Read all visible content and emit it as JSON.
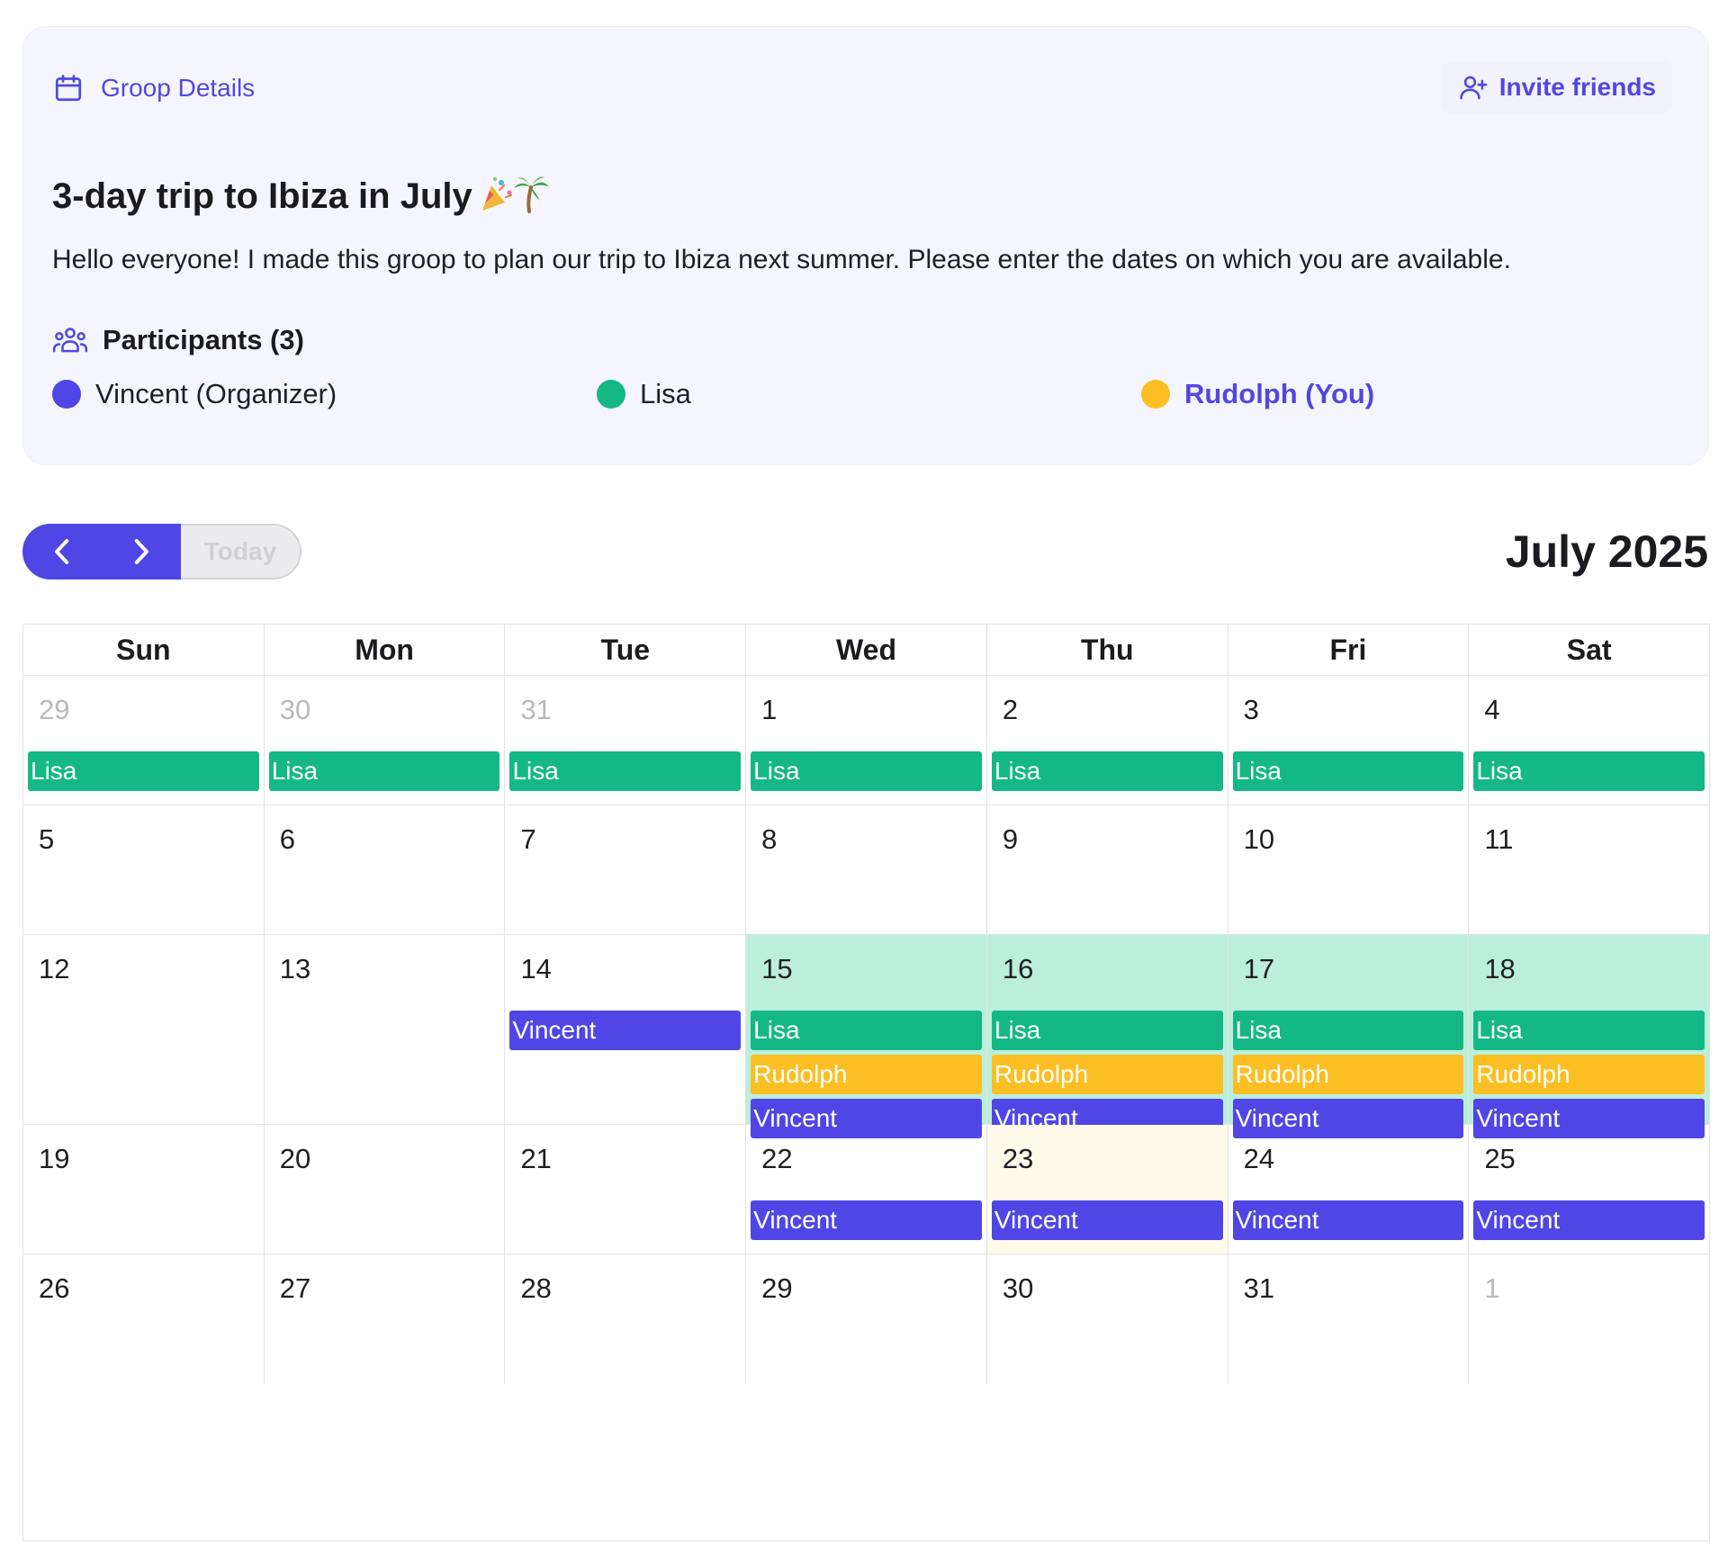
{
  "colors": {
    "accent": "#5247e0",
    "vincent": "#4f46e5",
    "lisa": "#14b885",
    "rudolph": "#fbbf24",
    "highlight": "#bbeedb",
    "today": "#fefbea"
  },
  "header": {
    "section_label": "Groop Details",
    "section_icon": "calendar-icon",
    "invite_label": "Invite friends",
    "invite_icon": "user-plus-icon"
  },
  "trip": {
    "title": "3-day trip to Ibiza in July",
    "title_emoji": [
      "party-popper",
      "palm-tree"
    ],
    "description": "Hello everyone! I made this groop to plan our trip to Ibiza next summer. Please enter the dates on which you are available."
  },
  "participants": {
    "heading": "Participants (3)",
    "list": [
      {
        "label": "Vincent (Organizer)",
        "color_key": "vincent"
      },
      {
        "label": "Lisa",
        "color_key": "lisa"
      },
      {
        "label": "Rudolph (You)",
        "color_key": "rudolph"
      }
    ]
  },
  "toolbar": {
    "prev_icon": "chevron-left-icon",
    "next_icon": "chevron-right-icon",
    "today_label": "Today",
    "month_title": "July 2025"
  },
  "calendar": {
    "weekdays": [
      "Sun",
      "Mon",
      "Tue",
      "Wed",
      "Thu",
      "Fri",
      "Sat"
    ],
    "weeks": [
      {
        "days": [
          {
            "date": "29",
            "other": true,
            "events": [
              "Lisa"
            ]
          },
          {
            "date": "30",
            "other": true,
            "events": [
              "Lisa"
            ]
          },
          {
            "date": "31",
            "other": true,
            "events": [
              "Lisa"
            ]
          },
          {
            "date": "1",
            "events": [
              "Lisa"
            ]
          },
          {
            "date": "2",
            "events": [
              "Lisa"
            ]
          },
          {
            "date": "3",
            "events": [
              "Lisa"
            ]
          },
          {
            "date": "4",
            "events": [
              "Lisa"
            ]
          }
        ]
      },
      {
        "days": [
          {
            "date": "5",
            "events": []
          },
          {
            "date": "6",
            "events": []
          },
          {
            "date": "7",
            "events": []
          },
          {
            "date": "8",
            "events": []
          },
          {
            "date": "9",
            "events": []
          },
          {
            "date": "10",
            "events": []
          },
          {
            "date": "11",
            "events": []
          }
        ]
      },
      {
        "days": [
          {
            "date": "12",
            "events": []
          },
          {
            "date": "13",
            "events": []
          },
          {
            "date": "14",
            "events": [
              "Vincent"
            ]
          },
          {
            "date": "15",
            "highlight": true,
            "events": [
              "Lisa",
              "Rudolph",
              "Vincent"
            ]
          },
          {
            "date": "16",
            "highlight": true,
            "events": [
              "Lisa",
              "Rudolph",
              "Vincent"
            ]
          },
          {
            "date": "17",
            "highlight": true,
            "events": [
              "Lisa",
              "Rudolph",
              "Vincent"
            ]
          },
          {
            "date": "18",
            "highlight": true,
            "events": [
              "Lisa",
              "Rudolph",
              "Vincent"
            ]
          }
        ]
      },
      {
        "days": [
          {
            "date": "19",
            "events": []
          },
          {
            "date": "20",
            "events": []
          },
          {
            "date": "21",
            "events": []
          },
          {
            "date": "22",
            "events": [
              "Vincent"
            ]
          },
          {
            "date": "23",
            "today": true,
            "events": [
              "Vincent"
            ]
          },
          {
            "date": "24",
            "events": [
              "Vincent"
            ]
          },
          {
            "date": "25",
            "events": [
              "Vincent"
            ]
          }
        ]
      },
      {
        "days": [
          {
            "date": "26",
            "events": []
          },
          {
            "date": "27",
            "events": []
          },
          {
            "date": "28",
            "events": []
          },
          {
            "date": "29",
            "events": []
          },
          {
            "date": "30",
            "events": []
          },
          {
            "date": "31",
            "events": []
          },
          {
            "date": "1",
            "other": true,
            "events": []
          }
        ]
      }
    ]
  }
}
